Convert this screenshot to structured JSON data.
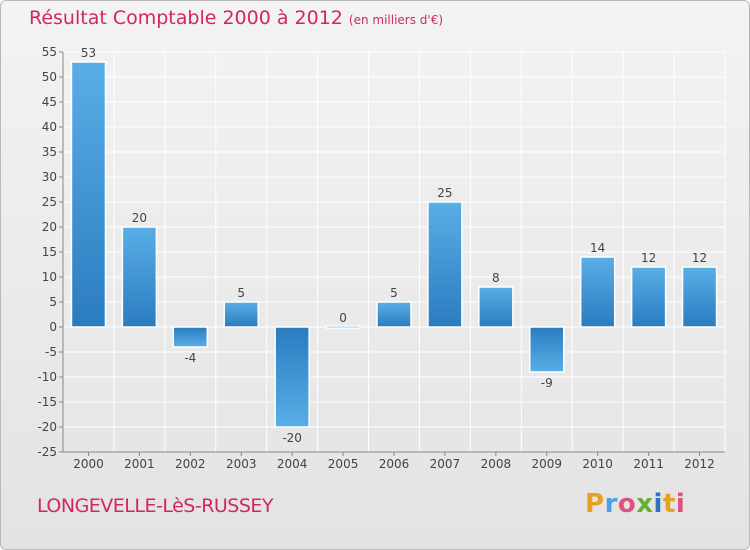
{
  "header": {
    "title": "Résultat Comptable 2000 à 2012",
    "subtitle": "(en milliers d'€)"
  },
  "footer": {
    "commune": "LONGEVELLE-LèS-RUSSEY",
    "logo_text": "Proxiti"
  },
  "colors": {
    "title": "#d1285c",
    "bar_light": "#5aaee6",
    "bar_dark": "#2a7cc0",
    "grid": "#ffffff",
    "background": "#e9e9e9"
  },
  "chart_data": {
    "type": "bar",
    "title": "Résultat Comptable 2000 à 2012",
    "subtitle": "(en milliers d'€)",
    "categories": [
      "2000",
      "2001",
      "2002",
      "2003",
      "2004",
      "2005",
      "2006",
      "2007",
      "2008",
      "2009",
      "2010",
      "2011",
      "2012"
    ],
    "values": [
      53,
      20,
      -4,
      5,
      -20,
      0,
      5,
      25,
      8,
      -9,
      14,
      12,
      12
    ],
    "ylim": [
      -25,
      55
    ],
    "yticks": [
      55,
      50,
      45,
      40,
      35,
      30,
      25,
      20,
      15,
      10,
      5,
      0,
      -5,
      -10,
      -15,
      -20,
      -25
    ],
    "grid": true,
    "xlabel": "",
    "ylabel": ""
  }
}
